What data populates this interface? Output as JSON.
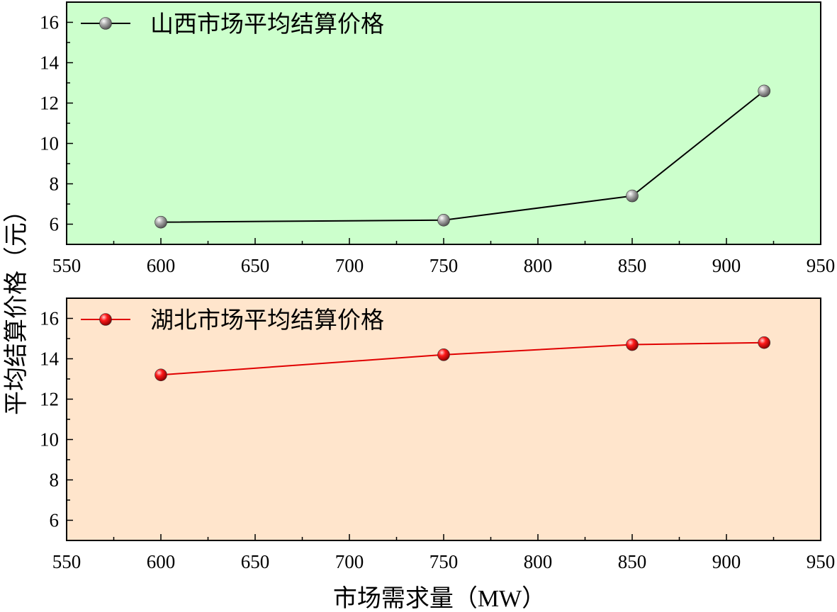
{
  "ylabel": "平均结算价格（元）",
  "xlabel": "市场需求量（MW）",
  "chart_data": [
    {
      "type": "line",
      "xlim": [
        550,
        950
      ],
      "ylim": [
        5,
        17
      ],
      "xticks": [
        550,
        600,
        650,
        700,
        750,
        800,
        850,
        900,
        950
      ],
      "yticks": [
        6,
        8,
        10,
        12,
        14,
        16
      ],
      "background": "#ccffcc",
      "legend_position": "top-left",
      "grid": false,
      "series": [
        {
          "name": "山西市场平均结算价格",
          "color": "#000000",
          "marker_color": "#9a9a9a",
          "x": [
            600,
            750,
            850,
            920
          ],
          "y": [
            6.1,
            6.2,
            7.4,
            12.6
          ]
        }
      ]
    },
    {
      "type": "line",
      "xlim": [
        550,
        950
      ],
      "ylim": [
        5,
        17
      ],
      "xticks": [
        550,
        600,
        650,
        700,
        750,
        800,
        850,
        900,
        950
      ],
      "yticks": [
        6,
        8,
        10,
        12,
        14,
        16
      ],
      "background": "#ffe5cc",
      "legend_position": "top-left",
      "grid": false,
      "series": [
        {
          "name": "湖北市场平均结算价格",
          "color": "#e00000",
          "marker_color": "#e00000",
          "x": [
            600,
            750,
            850,
            920
          ],
          "y": [
            13.2,
            14.2,
            14.7,
            14.8
          ]
        }
      ]
    }
  ]
}
